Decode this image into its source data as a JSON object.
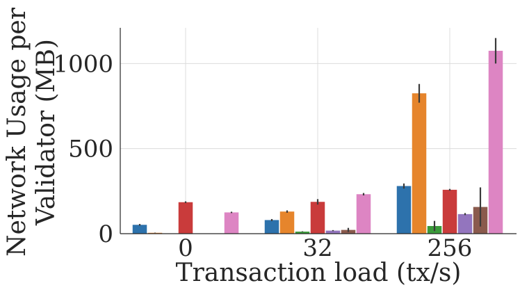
{
  "chart_data": {
    "type": "bar",
    "xlabel": "Transaction load (tx/s)",
    "ylabel": "Network Usage per\nValidator (MB)",
    "categories": [
      "0",
      "32",
      "256"
    ],
    "yticks": [
      0,
      500,
      1000
    ],
    "ylim": [
      0,
      1210
    ],
    "grid": true,
    "legend": "none",
    "series": [
      {
        "color": "#2d72ac",
        "values": [
          52,
          80,
          280
        ],
        "errors": [
          5,
          6,
          15
        ]
      },
      {
        "color": "#e6852c",
        "values": [
          5,
          130,
          825
        ],
        "errors": [
          1,
          7,
          55
        ]
      },
      {
        "color": "#3a9a3a",
        "values": [
          0,
          12,
          45
        ],
        "errors": [
          0,
          2,
          30
        ]
      },
      {
        "color": "#c93b3b",
        "values": [
          185,
          187,
          258
        ],
        "errors": [
          5,
          16,
          5
        ]
      },
      {
        "color": "#9375be",
        "values": [
          0,
          18,
          115
        ],
        "errors": [
          0,
          3,
          6
        ]
      },
      {
        "color": "#8a5a4d",
        "values": [
          1,
          22,
          157
        ],
        "errors": [
          0,
          12,
          115
        ]
      },
      {
        "color": "#dd85c3",
        "values": [
          125,
          232,
          1075
        ],
        "errors": [
          4,
          7,
          75
        ]
      }
    ]
  }
}
